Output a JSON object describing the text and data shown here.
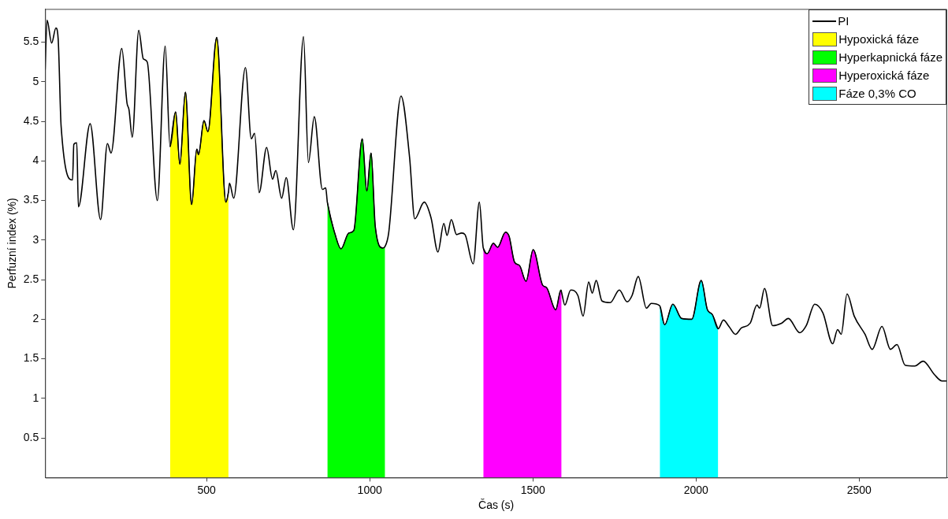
{
  "chart_data": {
    "type": "line",
    "xlabel": "Čas (s)",
    "ylabel": "Perfuzní index (%)",
    "xlim": [
      5,
      2770
    ],
    "xticks": [
      500,
      1000,
      1500,
      2000,
      2500
    ],
    "ylim": [
      0,
      5.92
    ],
    "yticks": [
      0.5,
      1,
      1.5,
      2,
      2.5,
      3,
      3.5,
      4,
      4.5,
      5,
      5.5
    ],
    "grid": false,
    "legend": "top right",
    "marker": "none",
    "line_style": "solid",
    "series": [
      {
        "name": "PI",
        "color": "#000000",
        "x": [
          5,
          11,
          25,
          38,
          45,
          54,
          89,
          93,
          102,
          107,
          143,
          175,
          196,
          207,
          240,
          256,
          262,
          272,
          292,
          306,
          318,
          349,
          373,
          388,
          405,
          418,
          435,
          454,
          470,
          475,
          492,
          504,
          531,
          559,
          567,
          570,
          583,
          619,
          637,
          647,
          661,
          684,
          702,
          712,
          730,
          744,
          766,
          797,
          812,
          830,
          855,
          865,
          870,
          894,
          912,
          936,
          951,
          977,
          991,
          1004,
          1017,
          1040,
          1047,
          1058,
          1096,
          1122,
          1138,
          1167,
          1188,
          1209,
          1227,
          1237,
          1250,
          1266,
          1282,
          1292,
          1317,
          1336,
          1348,
          1360,
          1379,
          1392,
          1416,
          1427,
          1444,
          1459,
          1479,
          1501,
          1530,
          1542,
          1570,
          1586,
          1588,
          1598,
          1616,
          1638,
          1654,
          1671,
          1682,
          1694,
          1712,
          1737,
          1765,
          1789,
          1804,
          1823,
          1848,
          1863,
          1889,
          1904,
          1929,
          1956,
          1987,
          2016,
          2035,
          2050,
          2068,
          2084,
          2101,
          2121,
          2139,
          2166,
          2187,
          2195,
          2210,
          2235,
          2262,
          2283,
          2318,
          2338,
          2364,
          2389,
          2419,
          2434,
          2445,
          2463,
          2485,
          2518,
          2540,
          2570,
          2596,
          2616,
          2641,
          2671,
          2696,
          2731,
          2754,
          2770
        ],
        "values": [
          5.15,
          5.78,
          5.49,
          5.68,
          5.54,
          4.44,
          3.76,
          4.21,
          4.23,
          3.42,
          4.47,
          3.26,
          4.22,
          4.1,
          5.42,
          4.73,
          4.65,
          4.3,
          5.65,
          5.29,
          5.25,
          3.5,
          5.45,
          4.18,
          4.62,
          3.96,
          4.87,
          3.45,
          4.15,
          4.08,
          4.51,
          4.37,
          5.56,
          3.48,
          3.61,
          3.72,
          3.53,
          5.18,
          4.28,
          4.35,
          3.6,
          4.17,
          3.77,
          3.88,
          3.53,
          3.79,
          3.13,
          5.57,
          3.98,
          4.56,
          3.64,
          3.66,
          3.48,
          3.07,
          2.89,
          3.09,
          3.12,
          4.28,
          3.62,
          4.1,
          3.17,
          2.9,
          2.92,
          3.09,
          4.82,
          4.05,
          3.27,
          3.48,
          3.28,
          2.85,
          3.21,
          3.06,
          3.26,
          3.07,
          3.09,
          3.07,
          2.7,
          3.48,
          2.9,
          2.83,
          2.96,
          2.91,
          3.1,
          3.05,
          2.72,
          2.68,
          2.48,
          2.88,
          2.43,
          2.4,
          2.12,
          2.37,
          2.34,
          2.18,
          2.37,
          2.3,
          2.04,
          2.47,
          2.33,
          2.49,
          2.23,
          2.21,
          2.37,
          2.22,
          2.3,
          2.54,
          2.14,
          2.2,
          2.17,
          1.93,
          2.19,
          2.01,
          2.0,
          2.49,
          2.12,
          2.06,
          1.88,
          1.99,
          1.91,
          1.81,
          1.89,
          1.95,
          2.18,
          2.14,
          2.39,
          1.92,
          1.95,
          2.01,
          1.83,
          1.92,
          2.19,
          2.08,
          1.69,
          1.87,
          1.81,
          2.32,
          2.04,
          1.81,
          1.62,
          1.91,
          1.62,
          1.68,
          1.42,
          1.41,
          1.47,
          1.3,
          1.22,
          1.22
        ]
      },
      {
        "name": "Hypoxická fáze",
        "type": "area",
        "color": "#ffff00",
        "x": [
          388,
          405,
          418,
          435,
          454,
          470,
          475,
          492,
          504,
          531,
          559,
          567
        ],
        "values": [
          4.18,
          4.62,
          3.96,
          4.87,
          3.45,
          4.15,
          4.08,
          4.51,
          4.37,
          5.56,
          3.48,
          3.61
        ]
      },
      {
        "name": "Hyperkapnická fáze",
        "type": "area",
        "color": "#00ff00",
        "x": [
          870,
          894,
          912,
          936,
          951,
          977,
          991,
          1004,
          1017,
          1040,
          1047
        ],
        "values": [
          3.48,
          3.07,
          2.89,
          3.09,
          3.12,
          4.28,
          3.62,
          4.1,
          3.17,
          2.9,
          2.92
        ]
      },
      {
        "name": "Hyperoxická fáze",
        "type": "area",
        "color": "#ff00ff",
        "x": [
          1348,
          1360,
          1379,
          1392,
          1416,
          1427,
          1444,
          1459,
          1479,
          1501,
          1530,
          1542,
          1570,
          1586,
          1588
        ],
        "values": [
          2.9,
          2.83,
          2.96,
          2.91,
          3.1,
          3.05,
          2.72,
          2.68,
          2.48,
          2.88,
          2.43,
          2.4,
          2.12,
          2.37,
          2.34
        ]
      },
      {
        "name": "Fáze 0,3% CO",
        "type": "area",
        "color": "#00ffff",
        "x": [
          1889,
          1904,
          1929,
          1956,
          1987,
          2016,
          2035,
          2050,
          2068
        ],
        "values": [
          2.17,
          1.93,
          2.19,
          2.01,
          2.0,
          2.49,
          2.12,
          2.06,
          1.88
        ]
      }
    ]
  }
}
